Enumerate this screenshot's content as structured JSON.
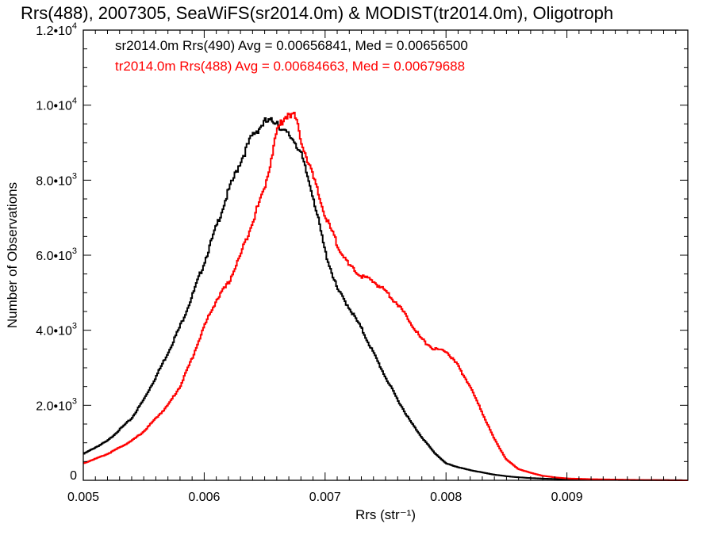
{
  "chart_data": {
    "type": "line",
    "style": "step-histogram",
    "title": "Rrs(488), 2007305, SeaWiFS(sr2014.0m) & MODIST(tr2014.0m), Oligotroph",
    "xlabel": "Rrs (str⁻¹)",
    "ylabel": "Number of Observations",
    "xlim": [
      0.005,
      0.01
    ],
    "ylim": [
      0,
      12000
    ],
    "grid": false,
    "legend_position": "top-left",
    "x_ticks": [
      {
        "value": 0.005,
        "label": "0.005"
      },
      {
        "value": 0.006,
        "label": "0.006"
      },
      {
        "value": 0.007,
        "label": "0.007"
      },
      {
        "value": 0.008,
        "label": "0.008"
      },
      {
        "value": 0.009,
        "label": "0.009"
      }
    ],
    "y_ticks": [
      {
        "value": 0,
        "mantissa": "0",
        "exponent": ""
      },
      {
        "value": 2000,
        "mantissa": "2.0•10",
        "exponent": "3"
      },
      {
        "value": 4000,
        "mantissa": "4.0•10",
        "exponent": "3"
      },
      {
        "value": 6000,
        "mantissa": "6.0•10",
        "exponent": "3"
      },
      {
        "value": 8000,
        "mantissa": "8.0•10",
        "exponent": "3"
      },
      {
        "value": 10000,
        "mantissa": "1.0•10",
        "exponent": "4"
      },
      {
        "value": 12000,
        "mantissa": "1.2•10",
        "exponent": "4"
      }
    ],
    "x": [
      0.005,
      0.0052,
      0.0054,
      0.0055,
      0.0056,
      0.0057,
      0.0058,
      0.0059,
      0.006,
      0.0061,
      0.0062,
      0.0063,
      0.0064,
      0.0065,
      0.00655,
      0.0066,
      0.00665,
      0.0067,
      0.00675,
      0.0068,
      0.0069,
      0.007,
      0.0071,
      0.0072,
      0.0073,
      0.0074,
      0.0075,
      0.0076,
      0.0077,
      0.0078,
      0.0079,
      0.008,
      0.0081,
      0.0082,
      0.0083,
      0.0084,
      0.0085,
      0.0086,
      0.0087,
      0.0088,
      0.0089,
      0.009,
      0.0092,
      0.0094,
      0.0096,
      0.0098,
      0.01
    ],
    "series": [
      {
        "name": "",
        "color": "#000000",
        "legend_text": "sr2014.0m Rrs(490) Avg = 0.00656841, Med = 0.00656500",
        "values": [
          700,
          1050,
          1650,
          2150,
          2750,
          3400,
          4100,
          4900,
          5800,
          6750,
          7700,
          8500,
          9200,
          9550,
          9550,
          9600,
          9300,
          9200,
          9050,
          8700,
          7600,
          6100,
          5100,
          4600,
          4050,
          3400,
          2750,
          2150,
          1600,
          1150,
          750,
          450,
          350,
          270,
          210,
          150,
          110,
          80,
          60,
          45,
          35,
          25,
          15,
          10,
          5,
          5,
          0
        ]
      },
      {
        "name": "",
        "color": "#ff0000",
        "legend_text": "tr2014.0m Rrs(488) Avg = 0.00684663, Med = 0.00679688",
        "values": [
          450,
          700,
          1050,
          1300,
          1650,
          2000,
          2500,
          3250,
          4100,
          4800,
          5250,
          6000,
          6900,
          7800,
          8500,
          9300,
          9600,
          9800,
          9700,
          9100,
          8100,
          7050,
          6300,
          5700,
          5450,
          5300,
          5050,
          4700,
          4250,
          3750,
          3500,
          3450,
          3050,
          2500,
          1800,
          1100,
          550,
          300,
          200,
          120,
          80,
          50,
          30,
          20,
          10,
          5,
          0
        ]
      }
    ]
  }
}
